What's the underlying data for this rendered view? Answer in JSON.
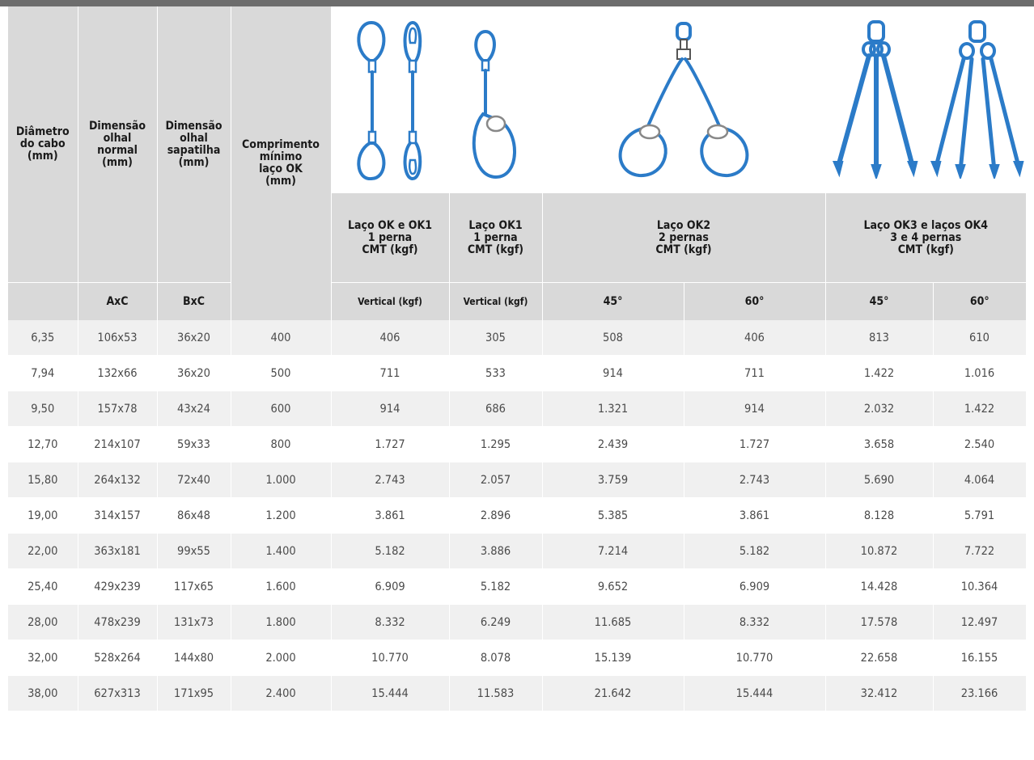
{
  "header": {
    "diameter": "Diâmetro\ndo cabo\n(mm)",
    "eye_normal": "Dimensão\nolhal\nnormal\n(mm)",
    "eye_thimble": "Dimensão\nolhal\nsapatilha\n(mm)",
    "min_length": "Comprimento\nmínimo\nlaço OK\n(mm)",
    "ok_ok1": "Laço OK e OK1\n1 perna\nCMT (kgf)",
    "ok1": "Laço OK1\n1 perna\nCMT (kgf)",
    "ok2": "Laço OK2\n2 pernas\nCMT (kgf)",
    "ok3_ok4": "Laço OK3 e laços OK4\n3 e 4 pernas\nCMT (kgf)",
    "axc": "AxC",
    "bxc": "BxC",
    "vertical1": "Vertical (kgf)",
    "vertical2": "Vertical (kgf)",
    "a45_1": "45°",
    "a60_1": "60°",
    "a45_2": "45°",
    "a60_2": "60°"
  },
  "icons": {
    "color": "#2b7bc8",
    "names": [
      "sling-ok-icon",
      "sling-ok1-icon",
      "sling-ok2-icon",
      "sling-ok3-icon",
      "sling-ok4-icon"
    ]
  },
  "rows": [
    [
      "6,35",
      "106x53",
      "36x20",
      "400",
      "406",
      "305",
      "508",
      "406",
      "813",
      "610"
    ],
    [
      "7,94",
      "132x66",
      "36x20",
      "500",
      "711",
      "533",
      "914",
      "711",
      "1.422",
      "1.016"
    ],
    [
      "9,50",
      "157x78",
      "43x24",
      "600",
      "914",
      "686",
      "1.321",
      "914",
      "2.032",
      "1.422"
    ],
    [
      "12,70",
      "214x107",
      "59x33",
      "800",
      "1.727",
      "1.295",
      "2.439",
      "1.727",
      "3.658",
      "2.540"
    ],
    [
      "15,80",
      "264x132",
      "72x40",
      "1.000",
      "2.743",
      "2.057",
      "3.759",
      "2.743",
      "5.690",
      "4.064"
    ],
    [
      "19,00",
      "314x157",
      "86x48",
      "1.200",
      "3.861",
      "2.896",
      "5.385",
      "3.861",
      "8.128",
      "5.791"
    ],
    [
      "22,00",
      "363x181",
      "99x55",
      "1.400",
      "5.182",
      "3.886",
      "7.214",
      "5.182",
      "10.872",
      "7.722"
    ],
    [
      "25,40",
      "429x239",
      "117x65",
      "1.600",
      "6.909",
      "5.182",
      "9.652",
      "6.909",
      "14.428",
      "10.364"
    ],
    [
      "28,00",
      "478x239",
      "131x73",
      "1.800",
      "8.332",
      "6.249",
      "11.685",
      "8.332",
      "17.578",
      "12.497"
    ],
    [
      "32,00",
      "528x264",
      "144x80",
      "2.000",
      "10.770",
      "8.078",
      "15.139",
      "10.770",
      "22.658",
      "16.155"
    ],
    [
      "38,00",
      "627x313",
      "171x95",
      "2.400",
      "15.444",
      "11.583",
      "21.642",
      "15.444",
      "32.412",
      "23.166"
    ]
  ]
}
